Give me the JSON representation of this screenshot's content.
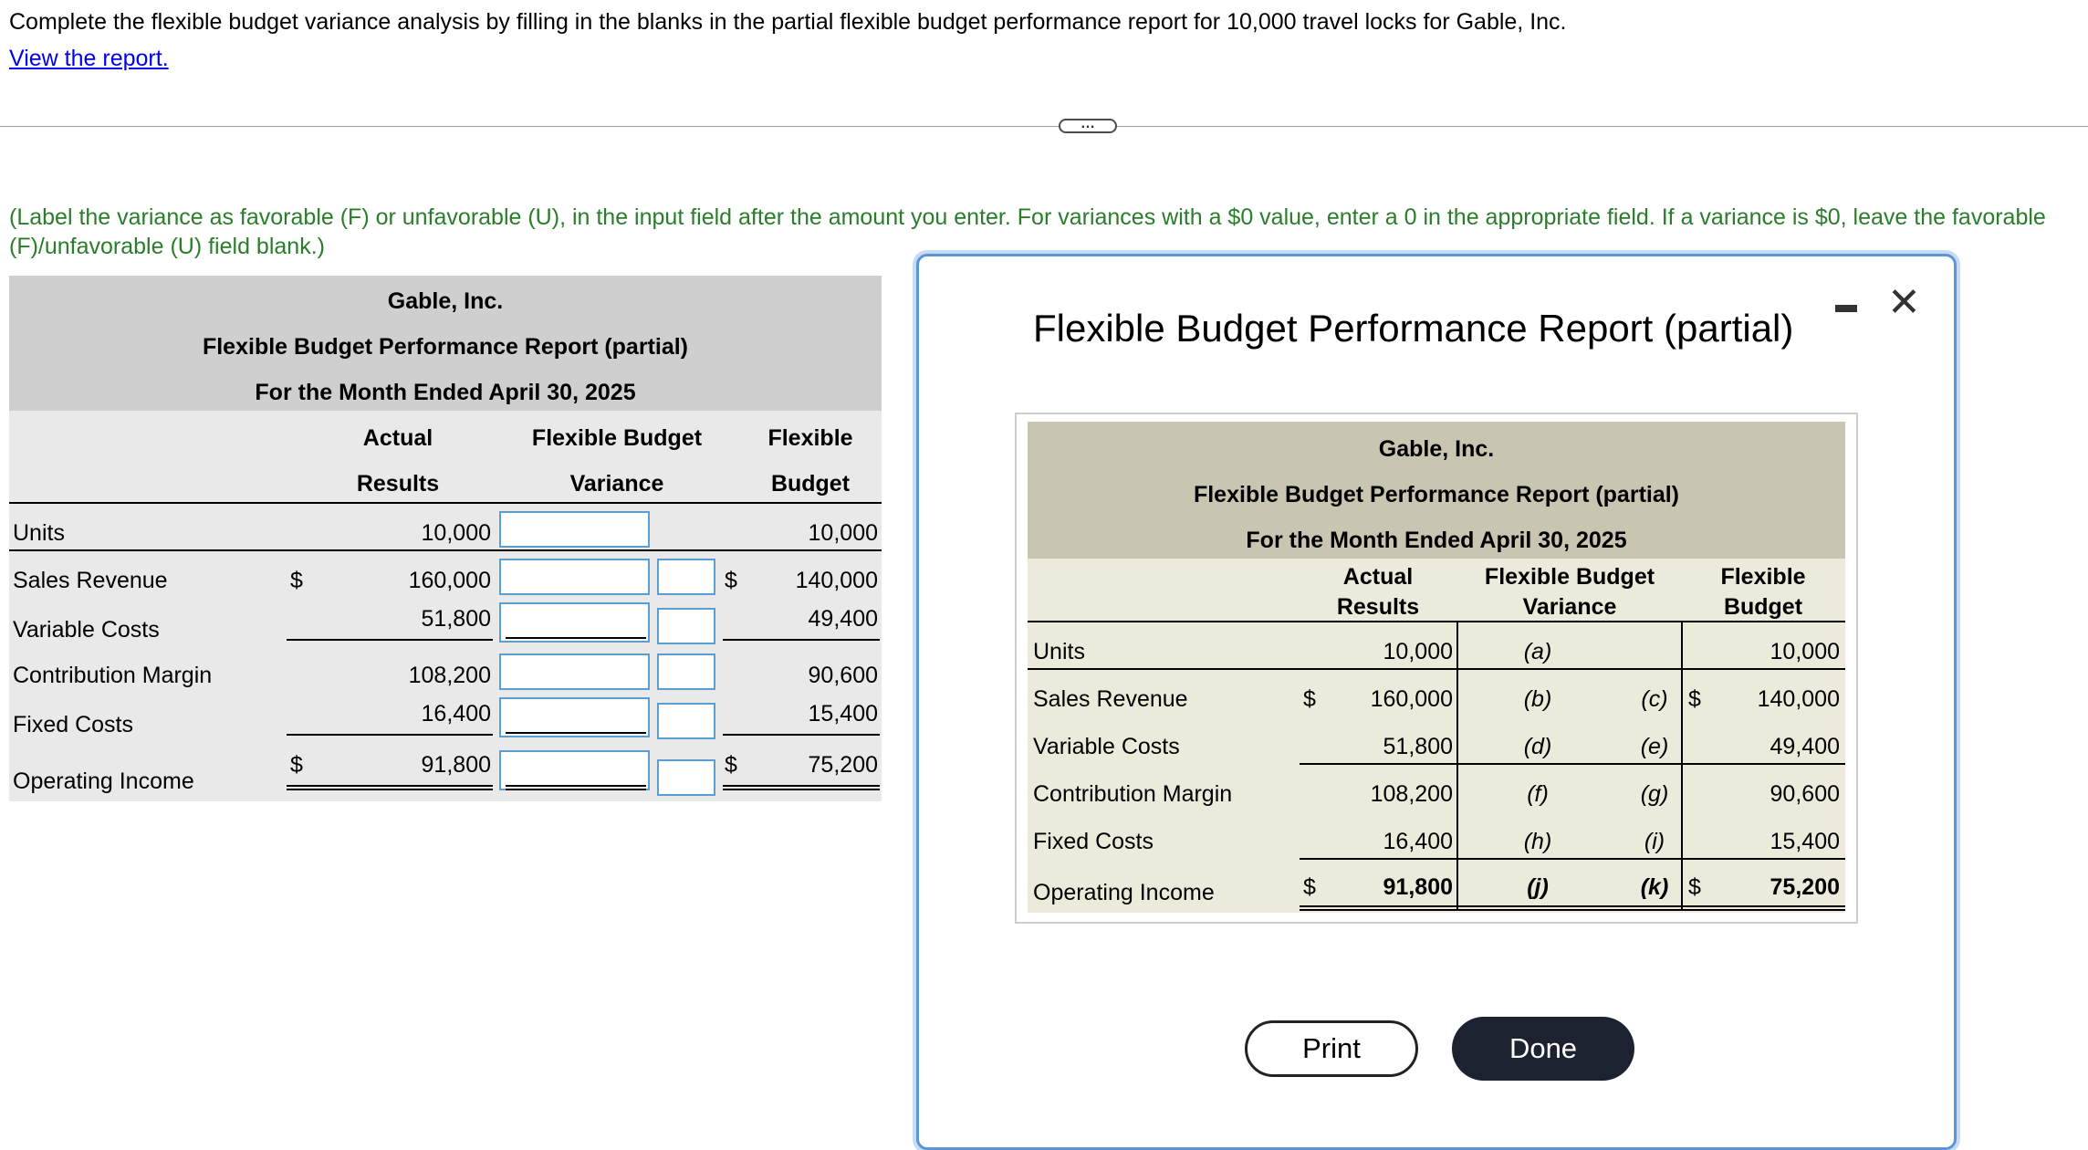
{
  "question": "Complete the flexible budget variance analysis by filling in the blanks in the partial flexible budget performance report for 10,000 travel locks for Gable, Inc.",
  "view_link": "View the report.",
  "expand_label": "…",
  "instruction": "(Label the variance as favorable (F) or unfavorable (U), in the input field after the amount you enter. For variances with a $0 value, enter a 0 in the appropriate field. If a variance is $0, leave the favorable (F)/unfavorable (U) field blank.)",
  "report": {
    "company": "Gable, Inc.",
    "title": "Flexible Budget Performance Report (partial)",
    "period": "For the Month Ended April 30, 2025",
    "col_actual_1": "Actual",
    "col_actual_2": "Results",
    "col_variance_1": "Flexible Budget",
    "col_variance_2": "Variance",
    "col_flex_1": "Flexible",
    "col_flex_2": "Budget",
    "rows": [
      {
        "label": "Units",
        "dollar": "",
        "actual": "10,000",
        "flex": "10,000",
        "var": "(a)",
        "fu": ""
      },
      {
        "label": "Sales Revenue",
        "dollar": "$",
        "actual": "160,000",
        "flex": "140,000",
        "var": "(b)",
        "fu": "(c)"
      },
      {
        "label": "Variable Costs",
        "dollar": "",
        "actual": "51,800",
        "flex": "49,400",
        "var": "(d)",
        "fu": "(e)"
      },
      {
        "label": "Contribution Margin",
        "dollar": "",
        "actual": "108,200",
        "flex": "90,600",
        "var": "(f)",
        "fu": "(g)"
      },
      {
        "label": "Fixed Costs",
        "dollar": "",
        "actual": "16,400",
        "flex": "15,400",
        "var": "(h)",
        "fu": "(i)"
      },
      {
        "label": "Operating Income",
        "dollar": "$",
        "actual": "91,800",
        "flex": "75,200",
        "var": "(j)",
        "fu": "(k)"
      }
    ]
  },
  "modal": {
    "title": "Flexible Budget Performance Report (partial)",
    "col_actual": "Actual\nResults",
    "col_variance": "Flexible Budget\nVariance",
    "col_flex": "Flexible\nBudget",
    "print_label": "Print",
    "done_label": "Done"
  },
  "colors": {
    "link": "#0000ee",
    "instruction_text": "#2a7d2a",
    "left_header_bg": "#cfcfcf",
    "left_body_bg": "#e9e9e9",
    "modal_border": "#5c95d6",
    "modal_header_bg": "#c8c5b0",
    "modal_body_bg": "#eceadb",
    "done_bg": "#1c2230",
    "input_border": "#5a9fd4"
  }
}
